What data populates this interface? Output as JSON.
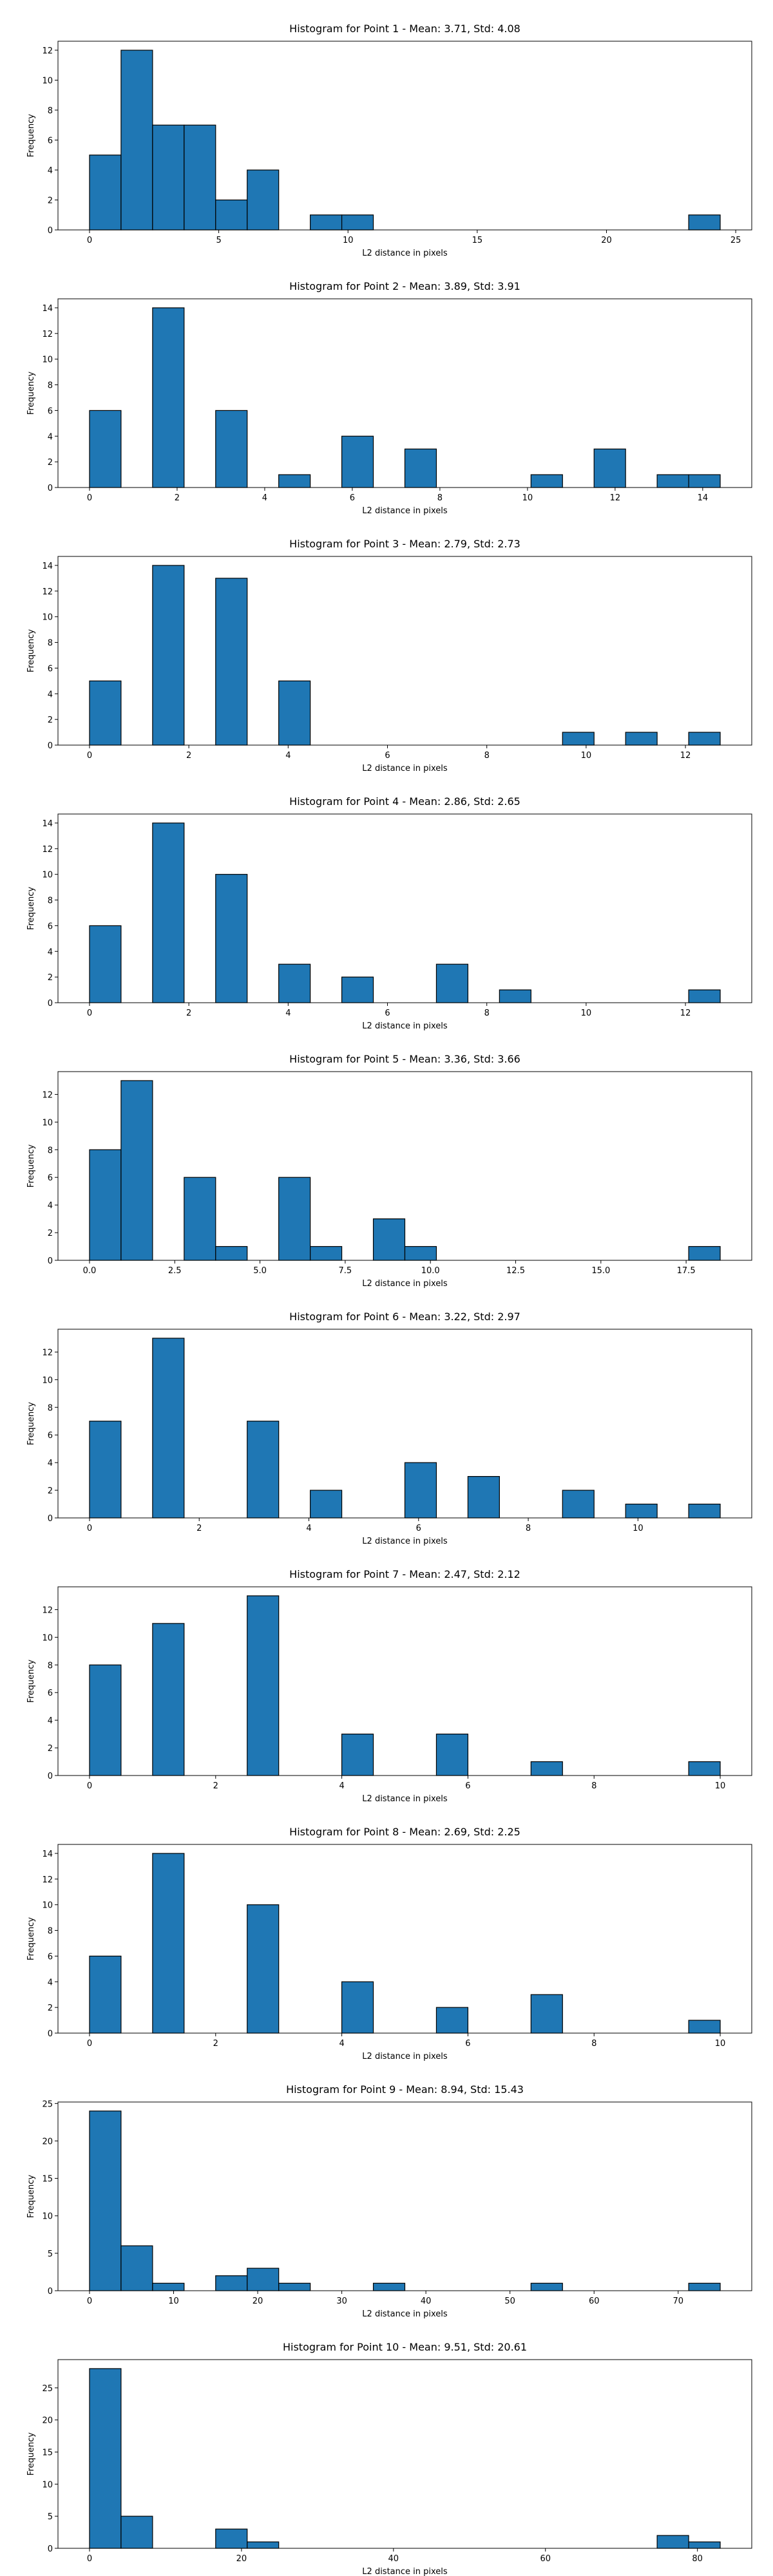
{
  "chart_data": [
    {
      "type": "histogram",
      "title": "Histogram for Point 1 - Mean: 3.71, Std: 4.08",
      "xlabel": "L2 distance in pixels",
      "ylabel": "Frequency",
      "color": "#1f77b4",
      "bins": [
        0,
        1.22,
        2.44,
        3.66,
        4.88,
        6.1,
        7.32,
        8.54,
        9.76,
        10.98,
        12.2,
        13.42,
        14.64,
        15.86,
        17.08,
        18.3,
        19.52,
        20.74,
        21.96,
        23.18,
        24.4
      ],
      "counts": [
        5,
        12,
        7,
        7,
        2,
        4,
        0,
        1,
        1,
        0,
        0,
        0,
        0,
        0,
        0,
        0,
        0,
        0,
        0,
        1
      ],
      "xlim": [
        -1.22,
        25.62
      ],
      "xticks": [
        0,
        5,
        10,
        15,
        20,
        25
      ],
      "ylim": [
        0,
        12.6
      ],
      "yticks": [
        0,
        2,
        4,
        6,
        8,
        10,
        12
      ]
    },
    {
      "type": "histogram",
      "title": "Histogram for Point 2 - Mean: 3.89, Std: 3.91",
      "xlabel": "L2 distance in pixels",
      "ylabel": "Frequency",
      "color": "#1f77b4",
      "bins": [
        0,
        0.72,
        1.44,
        2.16,
        2.88,
        3.6,
        4.32,
        5.04,
        5.76,
        6.48,
        7.2,
        7.92,
        8.64,
        9.36,
        10.08,
        10.8,
        11.52,
        12.24,
        12.96,
        13.68,
        14.4
      ],
      "counts": [
        6,
        0,
        14,
        0,
        6,
        0,
        1,
        0,
        4,
        0,
        3,
        0,
        0,
        0,
        1,
        0,
        3,
        0,
        1,
        1
      ],
      "xlim": [
        -0.72,
        15.12
      ],
      "xticks": [
        0,
        2,
        4,
        6,
        8,
        10,
        12,
        14
      ],
      "ylim": [
        0,
        14.7
      ],
      "yticks": [
        0,
        2,
        4,
        6,
        8,
        10,
        12,
        14
      ]
    },
    {
      "type": "histogram",
      "title": "Histogram for Point 3 - Mean: 2.79, Std: 2.73",
      "xlabel": "L2 distance in pixels",
      "ylabel": "Frequency",
      "color": "#1f77b4",
      "bins": [
        0,
        0.635,
        1.27,
        1.905,
        2.54,
        3.175,
        3.81,
        4.445,
        5.08,
        5.715,
        6.35,
        6.985,
        7.62,
        8.255,
        8.89,
        9.525,
        10.16,
        10.795,
        11.43,
        12.065,
        12.7
      ],
      "counts": [
        5,
        0,
        14,
        0,
        13,
        0,
        5,
        0,
        0,
        0,
        0,
        0,
        0,
        0,
        0,
        1,
        0,
        1,
        0,
        1
      ],
      "xlim": [
        -0.635,
        13.335
      ],
      "xticks": [
        0,
        2,
        4,
        6,
        8,
        10,
        12
      ],
      "ylim": [
        0,
        14.7
      ],
      "yticks": [
        0,
        2,
        4,
        6,
        8,
        10,
        12,
        14
      ]
    },
    {
      "type": "histogram",
      "title": "Histogram for Point 4 - Mean: 2.86, Std: 2.65",
      "xlabel": "L2 distance in pixels",
      "ylabel": "Frequency",
      "color": "#1f77b4",
      "bins": [
        0,
        0.635,
        1.27,
        1.905,
        2.54,
        3.175,
        3.81,
        4.445,
        5.08,
        5.715,
        6.35,
        6.985,
        7.62,
        8.255,
        8.89,
        9.525,
        10.16,
        10.795,
        11.43,
        12.065,
        12.7
      ],
      "counts": [
        6,
        0,
        14,
        0,
        10,
        0,
        3,
        0,
        2,
        0,
        0,
        3,
        0,
        1,
        0,
        0,
        0,
        0,
        0,
        1
      ],
      "xlim": [
        -0.635,
        13.335
      ],
      "xticks": [
        0,
        2,
        4,
        6,
        8,
        10,
        12
      ],
      "ylim": [
        0,
        14.7
      ],
      "yticks": [
        0,
        2,
        4,
        6,
        8,
        10,
        12,
        14
      ]
    },
    {
      "type": "histogram",
      "title": "Histogram for Point 5 - Mean: 3.36, Std: 3.66",
      "xlabel": "L2 distance in pixels",
      "ylabel": "Frequency",
      "color": "#1f77b4",
      "bins": [
        0,
        0.925,
        1.85,
        2.775,
        3.7,
        4.625,
        5.55,
        6.475,
        7.4,
        8.325,
        9.25,
        10.175,
        11.1,
        12.025,
        12.95,
        13.875,
        14.8,
        15.725,
        16.65,
        17.575,
        18.5
      ],
      "counts": [
        8,
        13,
        0,
        6,
        1,
        0,
        6,
        1,
        0,
        3,
        1,
        0,
        0,
        0,
        0,
        0,
        0,
        0,
        0,
        1
      ],
      "xlim": [
        -0.925,
        19.425
      ],
      "xticks": [
        {
          "value": 0,
          "label": "0.0"
        },
        2.5,
        {
          "value": 5,
          "label": "5.0"
        },
        7.5,
        {
          "value": 10,
          "label": "10.0"
        },
        12.5,
        {
          "value": 15,
          "label": "15.0"
        },
        17.5
      ],
      "ylim": [
        0,
        13.65
      ],
      "yticks": [
        0,
        2,
        4,
        6,
        8,
        10,
        12
      ]
    },
    {
      "type": "histogram",
      "title": "Histogram for Point 6 - Mean: 3.22, Std: 2.97",
      "xlabel": "L2 distance in pixels",
      "ylabel": "Frequency",
      "color": "#1f77b4",
      "bins": [
        0,
        0.575,
        1.15,
        1.725,
        2.3,
        2.875,
        3.45,
        4.025,
        4.6,
        5.175,
        5.75,
        6.325,
        6.9,
        7.475,
        8.05,
        8.625,
        9.2,
        9.775,
        10.35,
        10.925,
        11.5
      ],
      "counts": [
        7,
        0,
        13,
        0,
        0,
        7,
        0,
        2,
        0,
        0,
        4,
        0,
        3,
        0,
        0,
        2,
        0,
        1,
        0,
        1
      ],
      "xlim": [
        -0.575,
        12.075
      ],
      "xticks": [
        0,
        2,
        4,
        6,
        8,
        10
      ],
      "ylim": [
        0,
        13.65
      ],
      "yticks": [
        0,
        2,
        4,
        6,
        8,
        10,
        12
      ]
    },
    {
      "type": "histogram",
      "title": "Histogram for Point 7 - Mean: 2.47, Std: 2.12",
      "xlabel": "L2 distance in pixels",
      "ylabel": "Frequency",
      "color": "#1f77b4",
      "bins": [
        0,
        0.5,
        1,
        1.5,
        2,
        2.5,
        3,
        3.5,
        4,
        4.5,
        5,
        5.5,
        6,
        6.5,
        7,
        7.5,
        8,
        8.5,
        9,
        9.5,
        10
      ],
      "counts": [
        8,
        0,
        11,
        0,
        0,
        13,
        0,
        0,
        3,
        0,
        0,
        3,
        0,
        0,
        1,
        0,
        0,
        0,
        0,
        1
      ],
      "xlim": [
        -0.5,
        10.5
      ],
      "xticks": [
        0,
        2,
        4,
        6,
        8,
        10
      ],
      "ylim": [
        0,
        13.65
      ],
      "yticks": [
        0,
        2,
        4,
        6,
        8,
        10,
        12
      ]
    },
    {
      "type": "histogram",
      "title": "Histogram for Point 8 - Mean: 2.69, Std: 2.25",
      "xlabel": "L2 distance in pixels",
      "ylabel": "Frequency",
      "color": "#1f77b4",
      "bins": [
        0,
        0.5,
        1,
        1.5,
        2,
        2.5,
        3,
        3.5,
        4,
        4.5,
        5,
        5.5,
        6,
        6.5,
        7,
        7.5,
        8,
        8.5,
        9,
        9.5,
        10
      ],
      "counts": [
        6,
        0,
        14,
        0,
        0,
        10,
        0,
        0,
        4,
        0,
        0,
        2,
        0,
        0,
        3,
        0,
        0,
        0,
        0,
        1
      ],
      "xlim": [
        -0.5,
        10.5
      ],
      "xticks": [
        0,
        2,
        4,
        6,
        8,
        10
      ],
      "ylim": [
        0,
        14.7
      ],
      "yticks": [
        0,
        2,
        4,
        6,
        8,
        10,
        12,
        14
      ]
    },
    {
      "type": "histogram",
      "title": "Histogram for Point 9 - Mean: 8.94, Std: 15.43",
      "xlabel": "L2 distance in pixels",
      "ylabel": "Frequency",
      "color": "#1f77b4",
      "bins": [
        0,
        3.75,
        7.5,
        11.25,
        15,
        18.75,
        22.5,
        26.25,
        30,
        33.75,
        37.5,
        41.25,
        45,
        48.75,
        52.5,
        56.25,
        60,
        63.75,
        67.5,
        71.25,
        75
      ],
      "counts": [
        24,
        6,
        1,
        0,
        2,
        3,
        1,
        0,
        0,
        1,
        0,
        0,
        0,
        0,
        1,
        0,
        0,
        0,
        0,
        1
      ],
      "xlim": [
        -3.75,
        78.75
      ],
      "xticks": [
        0,
        10,
        20,
        30,
        40,
        50,
        60,
        70
      ],
      "ylim": [
        0,
        25.2
      ],
      "yticks": [
        0,
        5,
        10,
        15,
        20,
        25
      ]
    },
    {
      "type": "histogram",
      "title": "Histogram for Point 10 - Mean: 9.51, Std: 20.61",
      "xlabel": "L2 distance in pixels",
      "ylabel": "Frequency",
      "color": "#1f77b4",
      "bins": [
        0,
        4.15,
        8.3,
        12.45,
        16.6,
        20.75,
        24.9,
        29.05,
        33.2,
        37.35,
        41.5,
        45.65,
        49.8,
        53.95,
        58.1,
        62.25,
        66.4,
        70.55,
        74.7,
        78.85,
        83
      ],
      "counts": [
        28,
        5,
        0,
        0,
        3,
        1,
        0,
        0,
        0,
        0,
        0,
        0,
        0,
        0,
        0,
        0,
        0,
        0,
        2,
        1
      ],
      "xlim": [
        -4.15,
        87.15
      ],
      "xticks": [
        0,
        20,
        40,
        60,
        80
      ],
      "ylim": [
        0,
        29.4
      ],
      "yticks": [
        0,
        5,
        10,
        15,
        20,
        25
      ]
    }
  ]
}
